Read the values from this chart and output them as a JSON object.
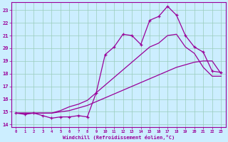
{
  "xlabel": "Windchill (Refroidissement éolien,°C)",
  "x_values": [
    0,
    1,
    2,
    3,
    4,
    5,
    6,
    7,
    8,
    9,
    10,
    11,
    12,
    13,
    14,
    15,
    16,
    17,
    18,
    19,
    20,
    21,
    22,
    23
  ],
  "line1": [
    14.9,
    14.8,
    14.9,
    14.7,
    14.5,
    14.6,
    14.6,
    14.7,
    14.6,
    16.5,
    19.5,
    20.1,
    21.1,
    21.0,
    20.3,
    22.2,
    22.5,
    23.3,
    22.6,
    21.0,
    20.1,
    19.7,
    18.2,
    18.1
  ],
  "line2": [
    14.9,
    14.9,
    14.9,
    14.9,
    14.9,
    15.0,
    15.1,
    15.3,
    15.5,
    15.8,
    16.1,
    16.4,
    16.7,
    17.0,
    17.3,
    17.6,
    17.9,
    18.2,
    18.5,
    18.7,
    18.9,
    19.0,
    19.0,
    18.0
  ],
  "line3": [
    14.9,
    14.9,
    14.9,
    14.9,
    14.9,
    15.1,
    15.4,
    15.6,
    15.9,
    16.5,
    17.1,
    17.7,
    18.3,
    18.9,
    19.5,
    20.1,
    20.4,
    21.0,
    21.1,
    20.1,
    19.6,
    18.5,
    17.8,
    17.8
  ],
  "color": "#990099",
  "bg_color": "#cceeff",
  "grid_color": "#99ccbb",
  "ylim": [
    13.8,
    23.6
  ],
  "xlim": [
    -0.5,
    23.5
  ],
  "yticks": [
    14,
    15,
    16,
    17,
    18,
    19,
    20,
    21,
    22,
    23
  ],
  "xticks": [
    0,
    1,
    2,
    3,
    4,
    5,
    6,
    7,
    8,
    9,
    10,
    11,
    12,
    13,
    14,
    15,
    16,
    17,
    18,
    19,
    20,
    21,
    22,
    23
  ]
}
